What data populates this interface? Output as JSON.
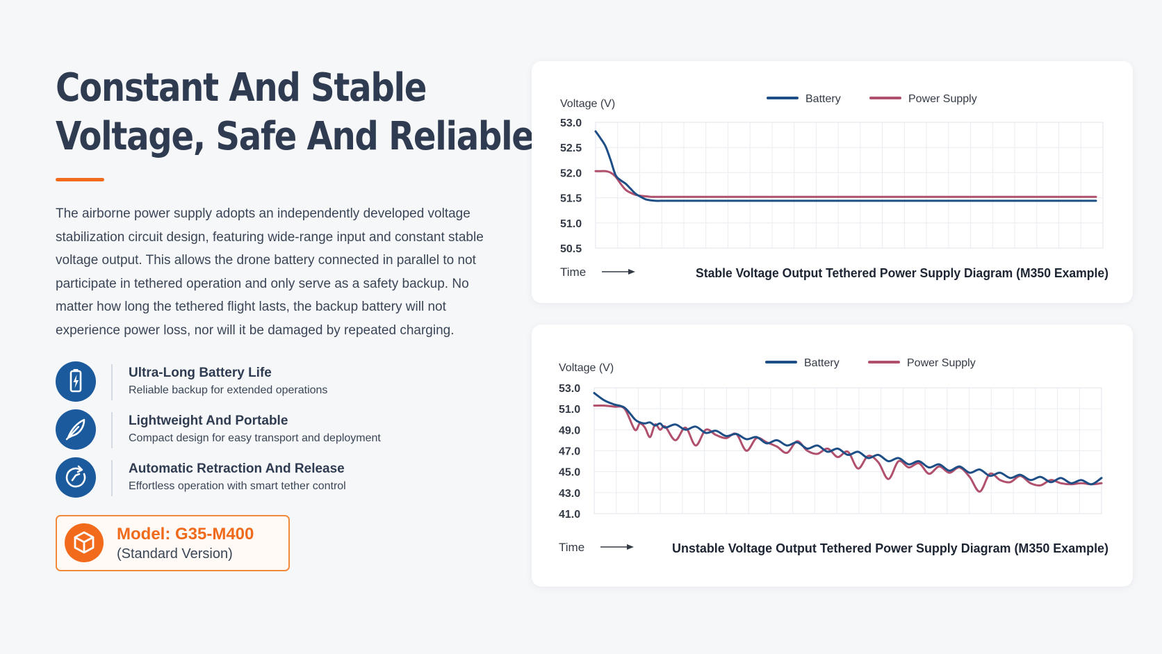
{
  "heading": {
    "line1": "Constant And Stable",
    "line2": "Voltage, Safe And Reliable"
  },
  "description": "The airborne power supply adopts an independently developed voltage stabilization circuit design, featuring wide-range input and constant stable voltage output. This allows the drone battery connected in parallel to not participate in tethered operation and only serve as a safety backup. No matter how long the tethered flight lasts, the backup battery will not experience power loss, nor will it be damaged by repeated charging.",
  "features": [
    {
      "icon": "battery-bolt-icon",
      "title": "Ultra-Long Battery Life",
      "subtitle": "Reliable backup for extended operations"
    },
    {
      "icon": "feather-icon",
      "title": "Lightweight And Portable",
      "subtitle": "Compact design for easy transport and deployment"
    },
    {
      "icon": "retraction-cycle-icon",
      "title": "Automatic Retraction And Release",
      "subtitle": "Effortless operation with smart tether control"
    }
  ],
  "model": {
    "icon": "box-icon",
    "name": "Model: G35-M400",
    "version": "(Standard Version)"
  },
  "colors": {
    "accent": "#f26b1d",
    "icon_bg": "#1b5a9c",
    "battery": "#1e4e86",
    "power_supply": "#b0506d"
  },
  "chart_data": [
    {
      "type": "line",
      "title": "Stable Voltage Output Tethered Power Supply Diagram (M350 Example)",
      "xlabel": "Time",
      "ylabel": "Voltage (V)",
      "ylim": [
        50.5,
        53.0
      ],
      "yticks": [
        "53.0",
        "52.5",
        "52.0",
        "51.5",
        "51.0",
        "50.5"
      ],
      "grid": true,
      "legend": "top-center",
      "x": [
        0,
        1,
        2,
        3,
        4,
        5,
        6,
        7,
        8,
        9,
        10,
        11,
        12,
        13,
        14,
        15,
        16,
        18,
        20,
        25,
        30,
        40,
        50,
        60,
        70,
        80,
        90,
        100
      ],
      "series": [
        {
          "name": "Battery",
          "values": [
            52.82,
            52.68,
            52.52,
            52.25,
            51.95,
            51.85,
            51.78,
            51.68,
            51.58,
            51.52,
            51.47,
            51.45,
            51.44,
            51.44,
            51.44,
            51.44,
            51.44,
            51.44,
            51.44,
            51.44,
            51.44,
            51.44,
            51.44,
            51.44,
            51.44,
            51.44,
            51.44,
            51.44
          ]
        },
        {
          "name": "Power Supply",
          "values": [
            52.03,
            52.03,
            52.03,
            52.0,
            51.92,
            51.78,
            51.66,
            51.6,
            51.56,
            51.54,
            51.53,
            51.52,
            51.52,
            51.52,
            51.52,
            51.52,
            51.52,
            51.52,
            51.52,
            51.52,
            51.52,
            51.52,
            51.52,
            51.52,
            51.52,
            51.52,
            51.52,
            51.52
          ]
        }
      ]
    },
    {
      "type": "line",
      "title": "Unstable Voltage Output Tethered Power Supply Diagram (M350 Example)",
      "xlabel": "Time",
      "ylabel": "Voltage (V)",
      "ylim": [
        41.0,
        53.0
      ],
      "yticks": [
        "53.0",
        "51.0",
        "49.0",
        "47.0",
        "45.0",
        "43.0",
        "41.0"
      ],
      "grid": true,
      "legend": "top-center",
      "x": [
        0,
        2,
        4,
        6,
        8,
        9,
        10,
        11,
        12,
        13,
        14,
        16,
        18,
        20,
        22,
        24,
        26,
        28,
        30,
        32,
        34,
        36,
        38,
        40,
        42,
        44,
        46,
        48,
        50,
        52,
        54,
        56,
        58,
        60,
        62,
        64,
        66,
        68,
        70,
        72,
        74,
        76,
        78,
        80,
        82,
        84,
        86,
        88,
        90,
        92,
        94,
        96,
        98,
        100
      ],
      "series": [
        {
          "name": "Battery",
          "values": [
            52.5,
            51.8,
            51.4,
            51.1,
            50.0,
            49.7,
            49.6,
            49.7,
            49.4,
            49.6,
            49.2,
            49.5,
            49.0,
            49.3,
            48.7,
            48.9,
            48.4,
            48.6,
            48.1,
            48.3,
            47.7,
            48.0,
            47.5,
            47.8,
            47.2,
            47.5,
            46.9,
            47.2,
            46.6,
            46.9,
            46.3,
            46.6,
            46.0,
            46.3,
            45.7,
            46.0,
            45.4,
            45.7,
            45.1,
            45.5,
            44.9,
            45.2,
            44.6,
            44.9,
            44.4,
            44.7,
            44.2,
            44.5,
            44.0,
            44.4,
            43.9,
            44.2,
            43.8,
            44.4
          ]
        },
        {
          "name": "Power Supply",
          "values": [
            51.3,
            51.3,
            51.2,
            51.0,
            49.0,
            49.6,
            49.2,
            48.3,
            49.5,
            49.0,
            49.3,
            48.0,
            49.2,
            47.5,
            49.0,
            48.5,
            48.2,
            48.6,
            47.0,
            48.2,
            47.8,
            47.4,
            46.8,
            47.9,
            47.0,
            46.7,
            47.2,
            46.4,
            46.9,
            45.3,
            46.5,
            45.9,
            44.3,
            46.0,
            45.4,
            45.8,
            44.8,
            45.5,
            44.9,
            45.4,
            44.5,
            43.1,
            44.8,
            44.2,
            44.0,
            44.6,
            43.9,
            43.7,
            44.2,
            43.9,
            43.8,
            43.9,
            43.8,
            43.9
          ]
        }
      ]
    }
  ]
}
